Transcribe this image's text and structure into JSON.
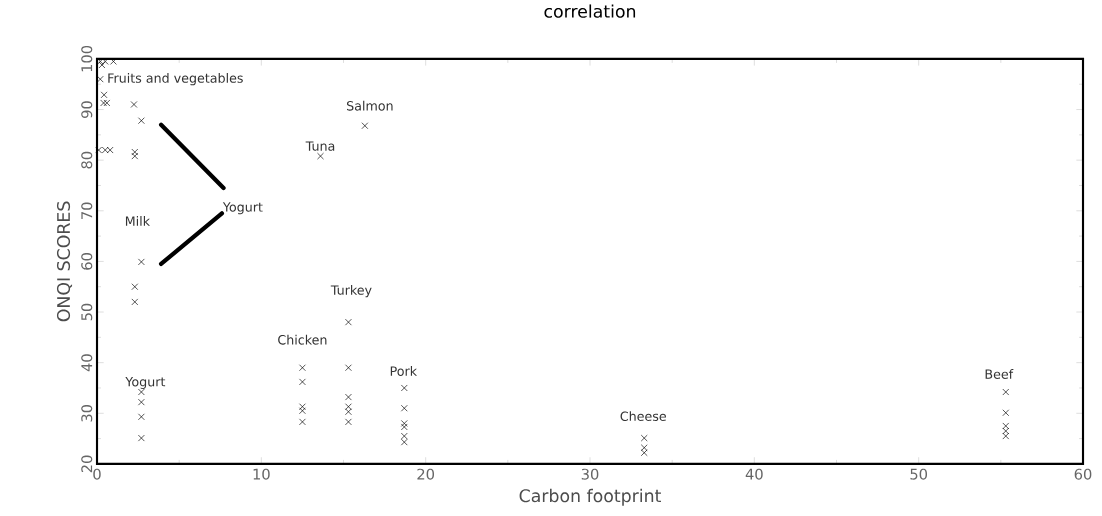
{
  "chart_data": {
    "type": "scatter",
    "title": "correlation",
    "xlabel": "Carbon footprint",
    "ylabel": "ONQI SCORES",
    "xlim": [
      0,
      60
    ],
    "xticks": [
      0,
      10,
      20,
      30,
      40,
      50,
      60
    ],
    "ylim": [
      20,
      100
    ],
    "yticks": [
      20,
      30,
      40,
      50,
      60,
      70,
      80,
      90,
      100
    ],
    "marker": "cross",
    "grid": false,
    "series": [
      {
        "color": "#000000",
        "x": [
          0.2,
          0.5,
          1.0,
          0.3,
          0.2,
          0.43,
          0.4,
          0.6,
          2.25,
          2.7,
          0.1,
          0.5,
          0.8,
          2.3,
          2.3,
          2.7,
          2.3,
          2.3,
          2.7,
          2.7,
          2.7,
          2.7,
          13.6,
          16.3,
          12.5,
          12.5,
          12.5,
          12.5,
          12.5,
          15.3,
          15.3,
          15.3,
          15.3,
          15.3,
          15.3,
          18.7,
          18.7,
          18.7,
          18.7,
          18.7,
          18.7,
          33.3,
          33.3,
          33.3,
          55.3,
          55.3,
          55.3,
          55.3,
          55.3
        ],
        "values": [
          99.5,
          99.5,
          99.5,
          98.8,
          96,
          92.9,
          91.3,
          91.3,
          91,
          87.8,
          82,
          82,
          82,
          81.6,
          80.8,
          59.9,
          55,
          52,
          34.2,
          32.2,
          29.3,
          25.1,
          80.8,
          86.8,
          39,
          36.2,
          31.3,
          30.5,
          28.3,
          48,
          39,
          33.2,
          31.3,
          30.3,
          28.3,
          35,
          31,
          28,
          27.3,
          25.5,
          24.3,
          25.1,
          23.2,
          22.2,
          34.2,
          30.1,
          27.5,
          26.5,
          25.5
        ]
      },
      {
        "type": "line",
        "color": "#000000",
        "marker": "none",
        "line_style": "solid",
        "x": [
          3.9,
          7.7,
          7.65,
          7.6,
          3.9
        ],
        "values": [
          87,
          74.5,
          null,
          69.5,
          59.5
        ]
      }
    ],
    "annotations": [
      {
        "text": "Fruits and vegetables",
        "x": 0.2,
        "y": 96
      },
      {
        "text": "Salmon",
        "x": 16.3,
        "y": 86.8
      },
      {
        "text": "Tuna",
        "x": 13.6,
        "y": 80.8
      },
      {
        "text": "Milk",
        "x": 2.7,
        "y": 59.9
      },
      {
        "text": "Yogurt",
        "x": 7.6,
        "y": 69.5
      },
      {
        "text": "Turkey",
        "x": 15.3,
        "y": 48
      },
      {
        "text": "Chicken",
        "x": 12.5,
        "y": 39
      },
      {
        "text": "Yogurt",
        "x": 2.7,
        "y": 34.2
      },
      {
        "text": "Pork",
        "x": 18.7,
        "y": 35
      },
      {
        "text": "Cheese",
        "x": 33.3,
        "y": 25.1
      },
      {
        "text": "Beef",
        "x": 55.3,
        "y": 34.2
      }
    ]
  }
}
